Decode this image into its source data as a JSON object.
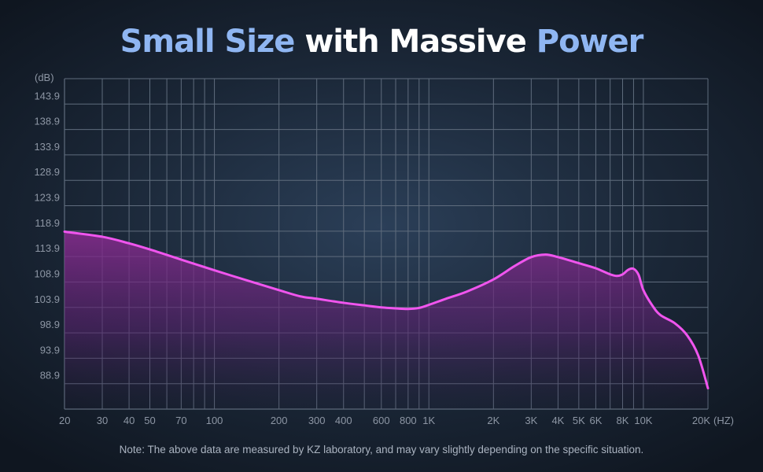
{
  "title": {
    "parts": [
      {
        "text": "Small Size",
        "color": "#8fb6f2"
      },
      {
        "text": " with Massive ",
        "color": "#ffffff"
      },
      {
        "text": "Power",
        "color": "#8fb6f2"
      }
    ]
  },
  "note": "Note: The above data are measured by KZ laboratory, and may vary slightly depending on the specific situation.",
  "colors": {
    "curve": "#f055ee",
    "fill_top": "#8a2c91",
    "grid": "#5f6c7d",
    "tick_text": "#8d96a4"
  },
  "chart_data": {
    "type": "line",
    "x_scale": "log",
    "ylabel": "(dB)",
    "xlabel": "(HZ)",
    "xlim": [
      20,
      20000
    ],
    "ylim": [
      83.9,
      148.9
    ],
    "y_ticks": [
      88.9,
      93.9,
      98.9,
      103.9,
      108.9,
      113.9,
      118.9,
      123.9,
      128.9,
      133.9,
      138.9,
      143.9
    ],
    "x_ticks": [
      {
        "value": 20,
        "label": "20"
      },
      {
        "value": 30,
        "label": "30"
      },
      {
        "value": 40,
        "label": "40"
      },
      {
        "value": 50,
        "label": "50"
      },
      {
        "value": 70,
        "label": "70"
      },
      {
        "value": 100,
        "label": "100"
      },
      {
        "value": 200,
        "label": "200"
      },
      {
        "value": 300,
        "label": "300"
      },
      {
        "value": 400,
        "label": "400"
      },
      {
        "value": 600,
        "label": "600"
      },
      {
        "value": 800,
        "label": "800"
      },
      {
        "value": 1000,
        "label": "1K"
      },
      {
        "value": 2000,
        "label": "2K"
      },
      {
        "value": 3000,
        "label": "3K"
      },
      {
        "value": 4000,
        "label": "4K"
      },
      {
        "value": 5000,
        "label": "5K"
      },
      {
        "value": 6000,
        "label": "6K"
      },
      {
        "value": 8000,
        "label": "8K"
      },
      {
        "value": 10000,
        "label": "10K"
      },
      {
        "value": 20000,
        "label": "20K"
      }
    ],
    "grid_x": [
      20,
      30,
      40,
      50,
      60,
      70,
      80,
      90,
      100,
      200,
      300,
      400,
      500,
      600,
      700,
      800,
      900,
      1000,
      2000,
      3000,
      4000,
      5000,
      6000,
      7000,
      8000,
      9000,
      10000,
      20000
    ],
    "grid": true,
    "series": [
      {
        "x": [
          20,
          30,
          40,
          50,
          70,
          100,
          150,
          200,
          250,
          300,
          400,
          500,
          600,
          700,
          800,
          900,
          1000,
          1200,
          1500,
          2000,
          2500,
          3000,
          3500,
          4000,
          5000,
          6000,
          7000,
          7500,
          8000,
          8500,
          9000,
          9500,
          10000,
          11000,
          12000,
          14000,
          16000,
          18000,
          20000
        ],
        "y": [
          118.8,
          117.8,
          116.5,
          115.3,
          113.3,
          111.2,
          108.9,
          107.3,
          106.1,
          105.6,
          104.8,
          104.3,
          103.9,
          103.7,
          103.6,
          103.8,
          104.4,
          105.6,
          107.0,
          109.4,
          112.0,
          113.8,
          114.3,
          113.8,
          112.6,
          111.6,
          110.4,
          110.1,
          110.4,
          111.3,
          111.5,
          110.3,
          107.3,
          104.3,
          102.4,
          100.8,
          98.4,
          94.5,
          88.0
        ]
      }
    ]
  }
}
